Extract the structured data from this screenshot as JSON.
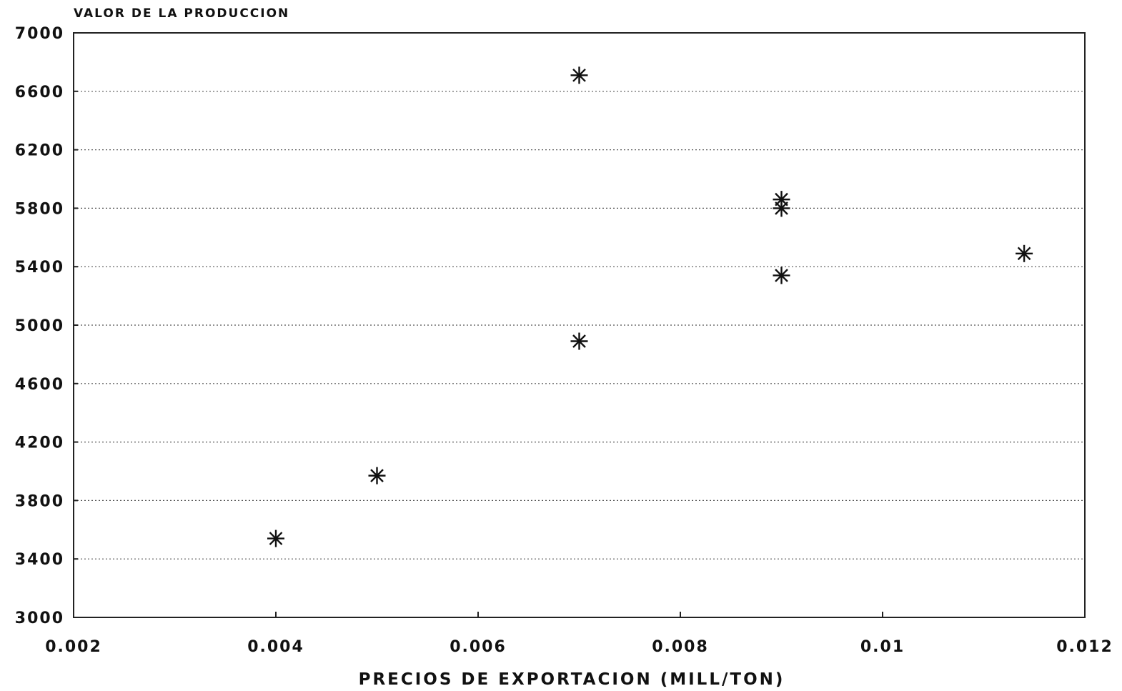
{
  "chart_data": {
    "type": "scatter",
    "ylabel": "VALOR DE LA PRODUCCION",
    "xlabel": "PRECIOS DE EXPORTACION (MILL/TON)",
    "xlim": [
      0.002,
      0.012
    ],
    "ylim": [
      3000,
      7000
    ],
    "x_ticks": [
      "0.002",
      "0.004",
      "0.006",
      "0.008",
      "0.01",
      "0.012"
    ],
    "y_ticks": [
      "3000",
      "3400",
      "3800",
      "4200",
      "4600",
      "5000",
      "5400",
      "5800",
      "6200",
      "6600",
      "7000"
    ],
    "grid": "horizontal dotted",
    "marker": "asterisk",
    "points": [
      {
        "x": 0.004,
        "y": 3540
      },
      {
        "x": 0.005,
        "y": 3970
      },
      {
        "x": 0.007,
        "y": 4890
      },
      {
        "x": 0.007,
        "y": 6710
      },
      {
        "x": 0.009,
        "y": 5340
      },
      {
        "x": 0.009,
        "y": 5800
      },
      {
        "x": 0.009,
        "y": 5860
      },
      {
        "x": 0.0114,
        "y": 5490
      }
    ]
  }
}
